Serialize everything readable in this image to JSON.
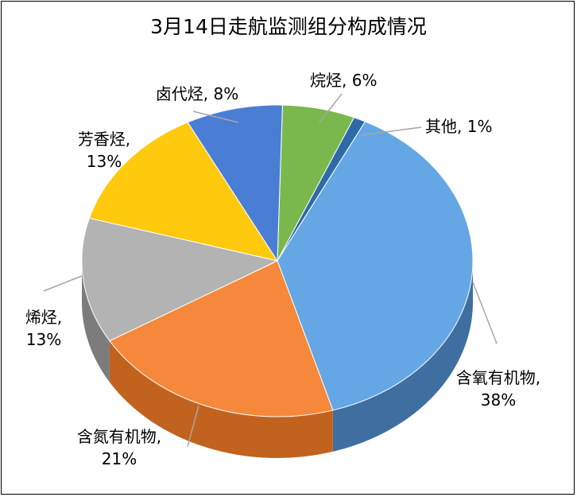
{
  "chart_data": {
    "type": "pie",
    "title": "3月14日走航监测组分构成情况",
    "slices": [
      {
        "name": "含氧有机物",
        "percent_label": "38%",
        "value": 38,
        "color": "#64A7E4",
        "side": "#3F6FA0"
      },
      {
        "name": "含氮有机物",
        "percent_label": "21%",
        "value": 21,
        "color": "#F5883B",
        "side": "#C2621F"
      },
      {
        "name": "烯烃",
        "percent_label": "13%",
        "value": 13,
        "color": "#B3B3B3",
        "side": "#7C7C7C"
      },
      {
        "name": "芳香烃",
        "percent_label": "13%",
        "value": 13,
        "color": "#FFC90E",
        "side": "#B8910A"
      },
      {
        "name": "卤代烃",
        "percent_label": "8%",
        "value": 8,
        "color": "#4A7ED4",
        "side": "#2E5290"
      },
      {
        "name": "烷烃",
        "percent_label": "6%",
        "value": 6,
        "color": "#7AB84E",
        "side": "#4F7E30"
      },
      {
        "name": "其他",
        "percent_label": "1%",
        "value": 1,
        "color": "#2E6AA8",
        "side": "#1C4170"
      }
    ],
    "legend": "none",
    "style": "3D exploded-free pie with data labels and leader lines"
  }
}
